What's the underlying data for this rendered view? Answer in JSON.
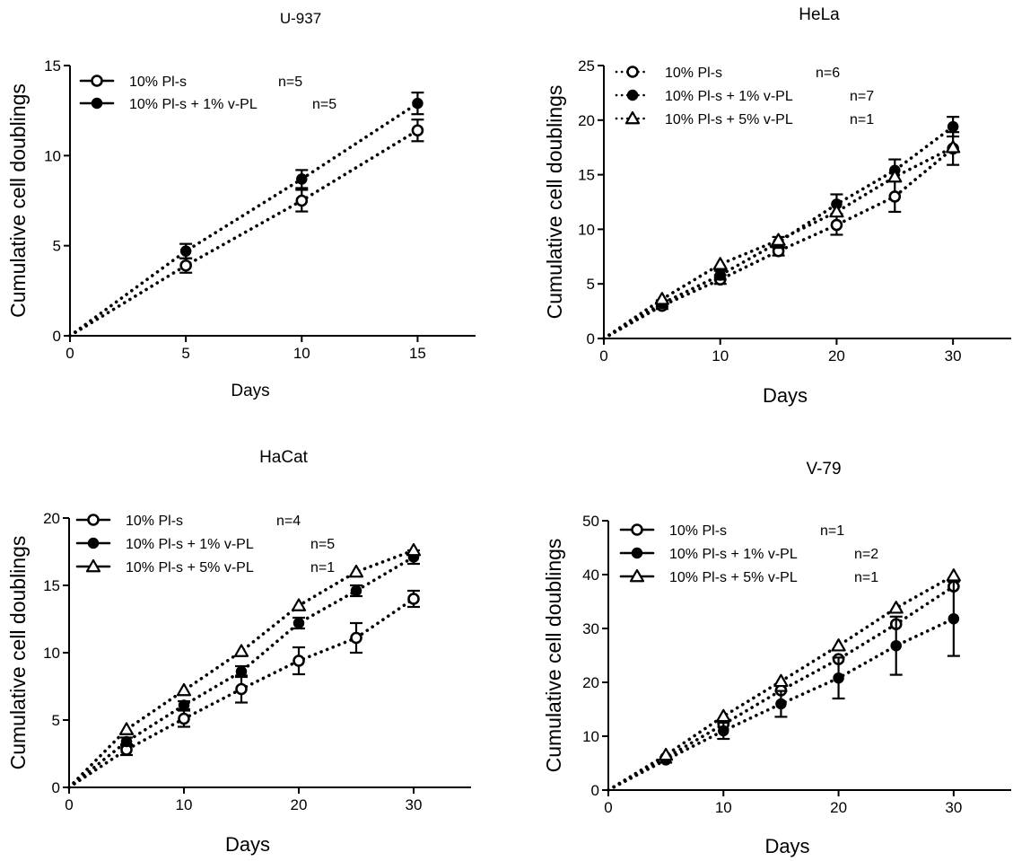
{
  "colors": {
    "ink": "#000000",
    "paper": "#ffffff"
  },
  "chart_data": [
    {
      "type": "line",
      "title": "U-937",
      "xlabel": "Days",
      "ylabel": "Cumulative cell doublings",
      "xlim": [
        0,
        17.5
      ],
      "ylim": [
        0,
        15
      ],
      "xticks": [
        0,
        5,
        10,
        15
      ],
      "yticks": [
        0,
        5,
        10,
        15
      ],
      "legend_position": "top-left",
      "x": [
        0,
        5,
        10,
        15
      ],
      "series": [
        {
          "name": "10% Pl-s",
          "n_label": "n=5",
          "marker": "circle-open",
          "values": [
            0,
            3.9,
            7.5,
            11.4
          ],
          "errors": [
            0,
            0.4,
            0.6,
            0.6
          ]
        },
        {
          "name": "10% Pl-s + 1% v-PL",
          "n_label": "n=5",
          "marker": "circle-filled",
          "values": [
            0,
            4.7,
            8.7,
            12.9
          ],
          "errors": [
            0,
            0.4,
            0.5,
            0.6
          ]
        }
      ]
    },
    {
      "type": "line",
      "title": "HeLa",
      "xlabel": "Days",
      "ylabel": "Cumulative cell doublings",
      "xlim": [
        0,
        35
      ],
      "ylim": [
        0,
        25
      ],
      "xticks": [
        0,
        10,
        20,
        30
      ],
      "yticks": [
        0,
        5,
        10,
        15,
        20,
        25
      ],
      "legend_position": "top-left",
      "x": [
        0,
        5,
        10,
        15,
        20,
        25,
        30
      ],
      "series": [
        {
          "name": "10% Pl-s",
          "n_label": "n=6",
          "marker": "circle-open",
          "values": [
            0,
            3.0,
            5.4,
            8.0,
            10.4,
            13.0,
            17.4
          ],
          "errors": [
            0,
            0.3,
            0.4,
            0.4,
            0.9,
            1.4,
            1.5
          ]
        },
        {
          "name": "10% Pl-s + 1% v-PL",
          "n_label": "n=7",
          "marker": "circle-filled",
          "values": [
            0,
            3.2,
            5.8,
            8.8,
            12.3,
            15.4,
            19.4
          ],
          "errors": [
            0,
            0.3,
            0.4,
            0.5,
            0.9,
            1.0,
            0.9
          ]
        },
        {
          "name": "10% Pl-s + 5% v-PL",
          "n_label": "n=1",
          "marker": "triangle-open",
          "values": [
            0,
            3.6,
            6.8,
            9.0,
            11.6,
            14.8,
            17.5
          ],
          "errors": [
            0,
            0,
            0,
            0,
            0,
            0,
            0
          ]
        }
      ]
    },
    {
      "type": "line",
      "title": "HaCat",
      "xlabel": "Days",
      "ylabel": "Cumulative cell doublings",
      "xlim": [
        0,
        35
      ],
      "ylim": [
        0,
        20
      ],
      "xticks": [
        0,
        10,
        20,
        30
      ],
      "yticks": [
        0,
        5,
        10,
        15,
        20
      ],
      "legend_position": "top-left",
      "x": [
        0,
        5,
        10,
        15,
        20,
        25,
        30
      ],
      "series": [
        {
          "name": "10% Pl-s",
          "n_label": "n=4",
          "marker": "circle-open",
          "values": [
            0,
            2.8,
            5.1,
            7.3,
            9.4,
            11.1,
            14.0
          ],
          "errors": [
            0,
            0.4,
            0.6,
            1.0,
            1.0,
            1.1,
            0.6
          ]
        },
        {
          "name": "10% Pl-s + 1% v-PL",
          "n_label": "n=5",
          "marker": "circle-filled",
          "values": [
            0,
            3.4,
            6.1,
            8.6,
            12.2,
            14.6,
            17.1
          ],
          "errors": [
            0,
            0.3,
            0.3,
            0.4,
            0.4,
            0.4,
            0.5
          ]
        },
        {
          "name": "10% Pl-s + 5% v-PL",
          "n_label": "n=1",
          "marker": "triangle-open",
          "values": [
            0,
            4.3,
            7.2,
            10.1,
            13.5,
            16.0,
            17.6
          ],
          "errors": [
            0,
            0,
            0,
            0,
            0,
            0,
            0
          ]
        }
      ]
    },
    {
      "type": "line",
      "title": "V-79",
      "xlabel": "Days",
      "ylabel": "Cumulative cell doublings",
      "xlim": [
        0,
        35
      ],
      "ylim": [
        0,
        50
      ],
      "xticks": [
        0,
        10,
        20,
        30
      ],
      "yticks": [
        0,
        10,
        20,
        30,
        40,
        50
      ],
      "legend_position": "top-left",
      "x": [
        0,
        5,
        10,
        15,
        20,
        25,
        30
      ],
      "series": [
        {
          "name": "10% Pl-s",
          "n_label": "n=1",
          "marker": "circle-open",
          "values": [
            0,
            6.0,
            12.2,
            18.5,
            24.3,
            30.8,
            37.8
          ],
          "errors": [
            0,
            0,
            0,
            0,
            0,
            0,
            0
          ]
        },
        {
          "name": "10% Pl-s + 1% v-PL",
          "n_label": "n=2",
          "marker": "circle-filled",
          "values": [
            0,
            5.6,
            11.0,
            16.0,
            20.8,
            26.8,
            31.8
          ],
          "errors": [
            0,
            0.5,
            1.5,
            2.4,
            3.8,
            5.4,
            6.9
          ]
        },
        {
          "name": "10% Pl-s + 5% v-PL",
          "n_label": "n=1",
          "marker": "triangle-open",
          "values": [
            0,
            6.5,
            13.7,
            20.2,
            26.8,
            33.8,
            39.8
          ],
          "errors": [
            0,
            0,
            0,
            0,
            0,
            0,
            0
          ]
        }
      ]
    }
  ]
}
